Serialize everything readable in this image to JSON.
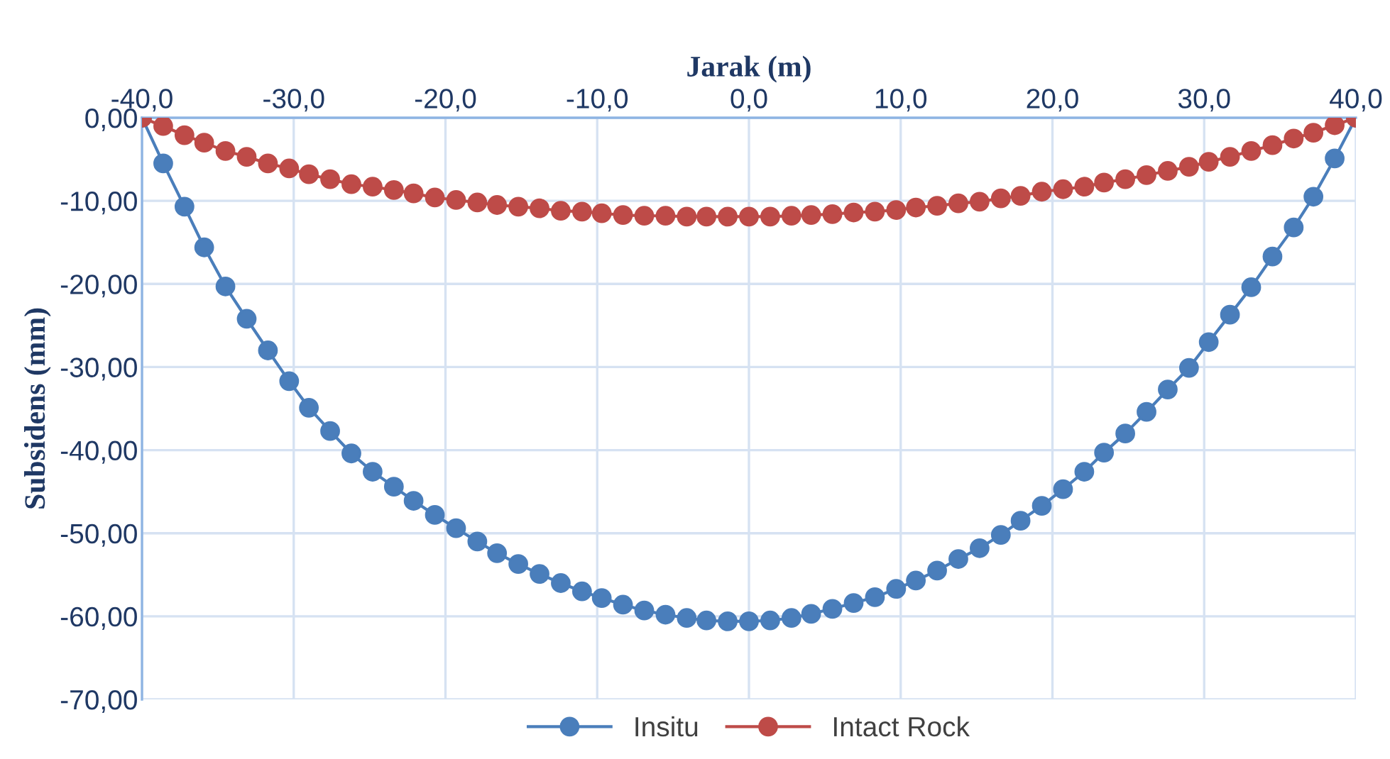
{
  "chart_data": {
    "type": "line",
    "xlabel": "Jarak (m)",
    "ylabel": "Subsidens (mm)",
    "x": [
      -40,
      -38.6,
      -37.2,
      -35.9,
      -34.5,
      -33.1,
      -31.7,
      -30.3,
      -29.0,
      -27.6,
      -26.2,
      -24.8,
      -23.4,
      -22.1,
      -20.7,
      -19.3,
      -17.9,
      -16.6,
      -15.2,
      -13.8,
      -12.4,
      -11.0,
      -9.7,
      -8.3,
      -6.9,
      -5.5,
      -4.1,
      -2.8,
      -1.4,
      0,
      1.4,
      2.8,
      4.1,
      5.5,
      6.9,
      8.3,
      9.7,
      11.0,
      12.4,
      13.8,
      15.2,
      16.6,
      17.9,
      19.3,
      20.7,
      22.1,
      23.4,
      24.8,
      26.2,
      27.6,
      29.0,
      30.3,
      31.7,
      33.1,
      34.5,
      35.9,
      37.2,
      38.6,
      40
    ],
    "series": [
      {
        "name": "Insitu",
        "color": "#4a7ebb",
        "values": [
          0,
          -5.5,
          -10.7,
          -15.6,
          -20.3,
          -24.2,
          -28.0,
          -31.7,
          -34.9,
          -37.7,
          -40.4,
          -42.6,
          -44.4,
          -46.1,
          -47.8,
          -49.4,
          -51.0,
          -52.4,
          -53.7,
          -54.9,
          -56.0,
          -57.0,
          -57.8,
          -58.6,
          -59.3,
          -59.8,
          -60.2,
          -60.5,
          -60.6,
          -60.6,
          -60.5,
          -60.2,
          -59.7,
          -59.1,
          -58.4,
          -57.7,
          -56.7,
          -55.7,
          -54.5,
          -53.1,
          -51.8,
          -50.2,
          -48.5,
          -46.7,
          -44.7,
          -42.6,
          -40.3,
          -38.0,
          -35.4,
          -32.7,
          -30.1,
          -27.0,
          -23.7,
          -20.4,
          -16.7,
          -13.2,
          -9.5,
          -4.9,
          0
        ]
      },
      {
        "name": "Intact Rock",
        "color": "#be4b48",
        "values": [
          0,
          -1.0,
          -2.1,
          -3.0,
          -4.0,
          -4.7,
          -5.5,
          -6.1,
          -6.8,
          -7.4,
          -8.0,
          -8.3,
          -8.7,
          -9.1,
          -9.6,
          -9.9,
          -10.2,
          -10.5,
          -10.7,
          -10.9,
          -11.2,
          -11.3,
          -11.5,
          -11.7,
          -11.8,
          -11.8,
          -11.9,
          -11.9,
          -11.9,
          -11.9,
          -11.9,
          -11.8,
          -11.7,
          -11.6,
          -11.4,
          -11.3,
          -11.1,
          -10.8,
          -10.6,
          -10.3,
          -10.1,
          -9.7,
          -9.4,
          -8.9,
          -8.6,
          -8.3,
          -7.8,
          -7.4,
          -6.9,
          -6.4,
          -5.9,
          -5.3,
          -4.7,
          -4.0,
          -3.3,
          -2.5,
          -1.8,
          -0.9,
          0
        ]
      }
    ],
    "xlim": [
      -40,
      40
    ],
    "ylim": [
      -70,
      0
    ],
    "xticks": [
      {
        "value": -40,
        "label": "-40,0"
      },
      {
        "value": -30,
        "label": "-30,0"
      },
      {
        "value": -20,
        "label": "-20,0"
      },
      {
        "value": -10,
        "label": "-10,0"
      },
      {
        "value": 0,
        "label": "0,0"
      },
      {
        "value": 10,
        "label": "10,0"
      },
      {
        "value": 20,
        "label": "20,0"
      },
      {
        "value": 30,
        "label": "30,0"
      },
      {
        "value": 40,
        "label": "40,0"
      }
    ],
    "yticks": [
      {
        "value": 0,
        "label": "0,00"
      },
      {
        "value": -10,
        "label": "-10,00"
      },
      {
        "value": -20,
        "label": "-20,00"
      },
      {
        "value": -30,
        "label": "-30,00"
      },
      {
        "value": -40,
        "label": "-40,00"
      },
      {
        "value": -50,
        "label": "-50,00"
      },
      {
        "value": -60,
        "label": "-60,00"
      },
      {
        "value": -70,
        "label": "-70,00"
      }
    ],
    "grid": true,
    "legend": "bottom",
    "marker": "circle",
    "line_style": "solid"
  }
}
